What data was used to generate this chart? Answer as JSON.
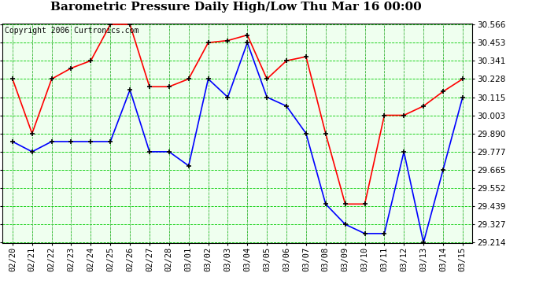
{
  "title": "Barometric Pressure Daily High/Low Thu Mar 16 00:00",
  "copyright": "Copyright 2006 Curtronics.com",
  "labels": [
    "02/20",
    "02/21",
    "02/22",
    "02/23",
    "02/24",
    "02/25",
    "02/26",
    "02/27",
    "02/28",
    "03/01",
    "03/02",
    "03/03",
    "03/04",
    "03/05",
    "03/06",
    "03/07",
    "03/08",
    "03/09",
    "03/10",
    "03/11",
    "03/12",
    "03/13",
    "03/14",
    "03/15"
  ],
  "high": [
    30.228,
    29.89,
    30.228,
    30.295,
    30.341,
    30.566,
    30.566,
    30.18,
    30.18,
    30.228,
    30.453,
    30.466,
    30.5,
    30.228,
    30.341,
    30.366,
    29.89,
    29.453,
    29.453,
    30.003,
    30.003,
    30.06,
    30.15,
    30.228
  ],
  "low": [
    29.84,
    29.777,
    29.84,
    29.84,
    29.84,
    29.84,
    30.16,
    29.777,
    29.777,
    29.69,
    30.228,
    30.115,
    30.453,
    30.115,
    30.06,
    29.89,
    29.453,
    29.327,
    29.27,
    29.27,
    29.777,
    29.214,
    29.665,
    30.115
  ],
  "ylim_min": 29.214,
  "ylim_max": 30.566,
  "yticks": [
    30.566,
    30.453,
    30.341,
    30.228,
    30.115,
    30.003,
    29.89,
    29.777,
    29.665,
    29.552,
    29.439,
    29.327,
    29.214
  ],
  "high_color": "#ff0000",
  "low_color": "#0000ff",
  "bg_color": "#ffffff",
  "plot_bg_color": "#efffef",
  "grid_color": "#00cc00",
  "title_fontsize": 11,
  "copyright_fontsize": 7,
  "tick_fontsize": 7.5
}
